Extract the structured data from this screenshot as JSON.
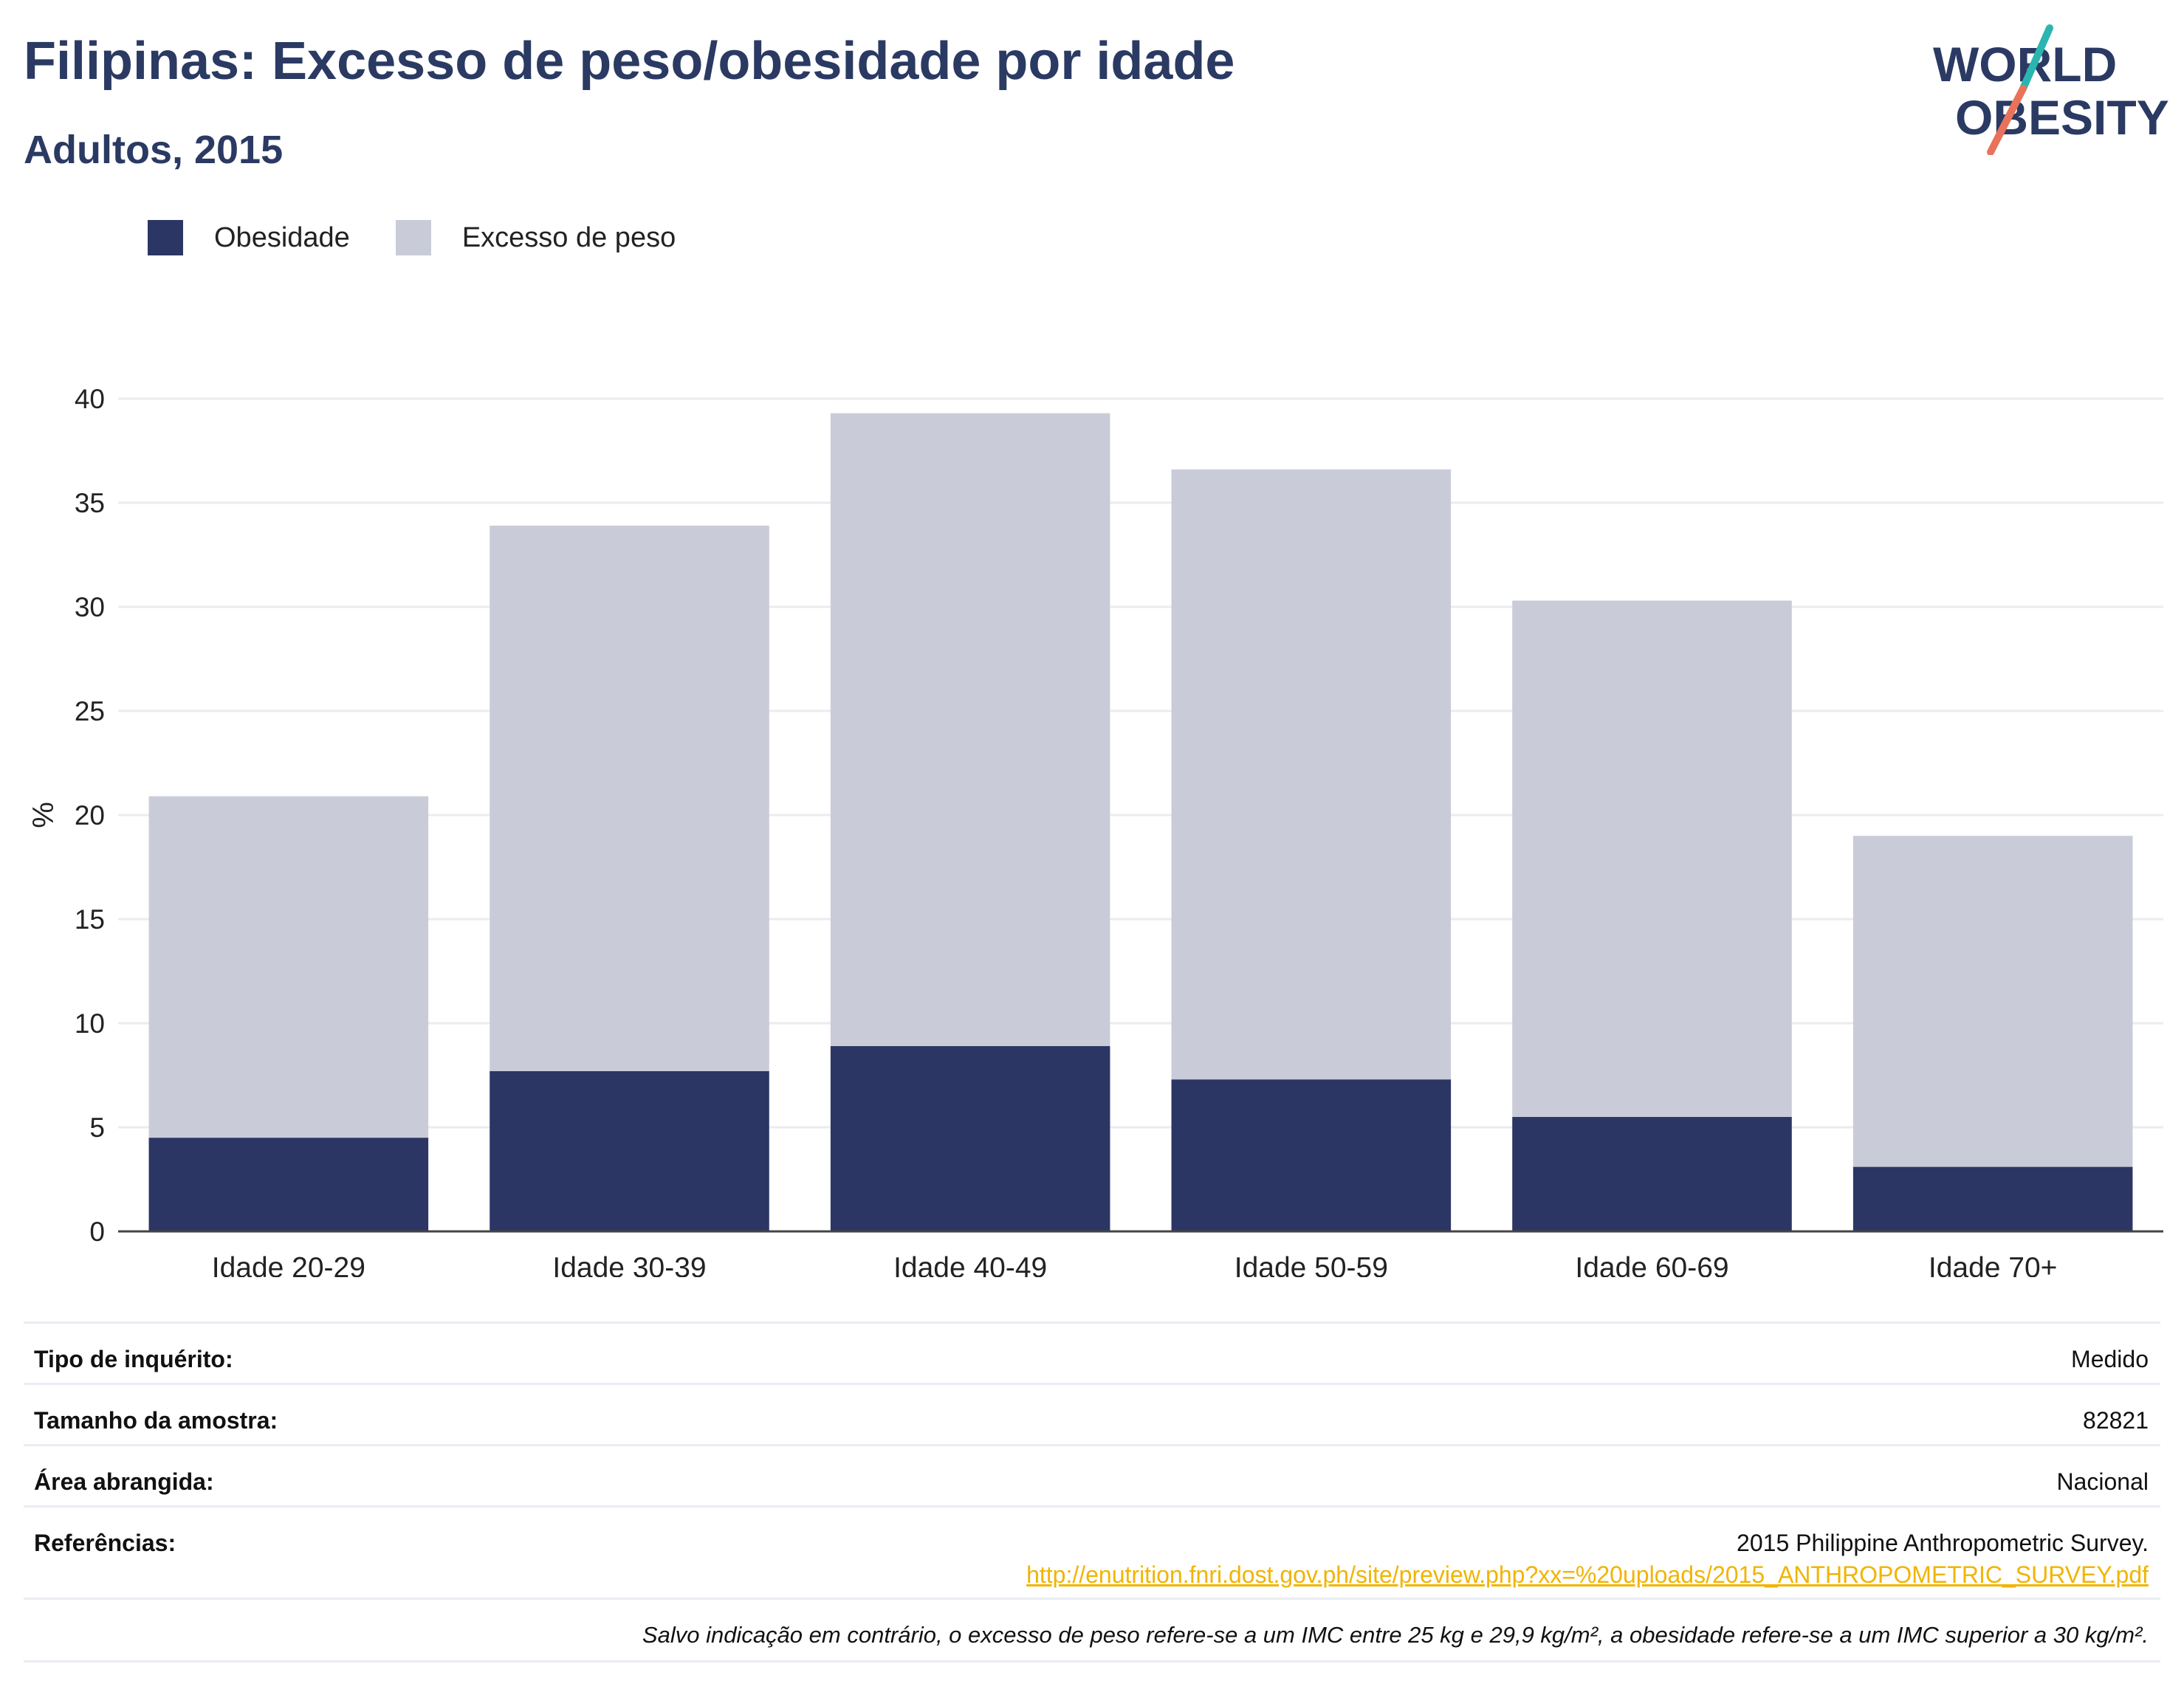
{
  "header": {
    "title": "Filipinas: Excesso de peso/obesidade por idade",
    "subtitle": "Adultos, 2015"
  },
  "logo": {
    "line1": "WORLD",
    "line2": "OBESITY",
    "accent_teal": "#2bb5b0",
    "accent_coral": "#e9735a"
  },
  "legend": [
    {
      "label": "Obesidade",
      "color": "#2b3664"
    },
    {
      "label": "Excesso de peso",
      "color": "#c9ccd8"
    }
  ],
  "chart_data": {
    "type": "bar",
    "stacked": true,
    "categories": [
      "Idade 20-29",
      "Idade 30-39",
      "Idade 40-49",
      "Idade 50-59",
      "Idade 60-69",
      "Idade 70+"
    ],
    "series": [
      {
        "name": "Obesidade",
        "color": "#2b3664",
        "values": [
          4.5,
          7.7,
          8.9,
          7.3,
          5.5,
          3.1
        ]
      },
      {
        "name": "Excesso de peso",
        "color": "#c9ccd8",
        "values": [
          16.4,
          26.2,
          30.4,
          29.3,
          24.8,
          15.9
        ]
      }
    ],
    "totals": [
      20.9,
      33.9,
      39.3,
      36.6,
      30.3,
      19.0
    ],
    "ylabel": "%",
    "ylim": [
      0,
      40
    ],
    "yticks": [
      0,
      5,
      10,
      15,
      20,
      25,
      30,
      35,
      40
    ],
    "grid": true,
    "legend_position": "top-left"
  },
  "metadata": {
    "rows": [
      {
        "label": "Tipo de inquérito:",
        "value": "Medido"
      },
      {
        "label": "Tamanho da amostra:",
        "value": "82821"
      },
      {
        "label": "Área abrangida:",
        "value": "Nacional"
      },
      {
        "label": "Referências:",
        "value": "2015 Philippine Anthropometric Survey.",
        "link": "http://enutrition.fnri.dost.gov.ph/site/preview.php?xx=%20uploads/2015_ANTHROPOMETRIC_SURVEY.pdf"
      }
    ],
    "note": "Salvo indicação em contrário, o excesso de peso refere-se a um IMC entre 25 kg e 29,9 kg/m², a obesidade refere-se a um IMC superior a 30 kg/m²."
  }
}
